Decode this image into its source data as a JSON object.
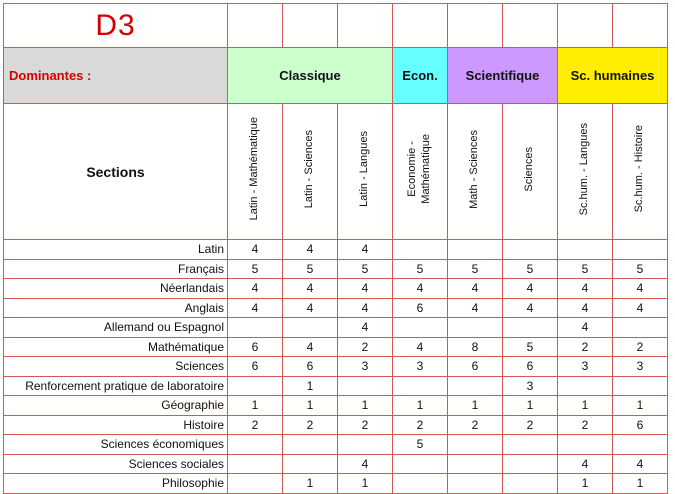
{
  "title": "D3",
  "dominantes_label": "Dominantes :",
  "sections_label": "Sections",
  "colors": {
    "grid_border": "#d25757",
    "title_red": "#d50000",
    "dominantes_bg": "#d9d9d9",
    "classique_bg": "#ccffcc",
    "econ_bg": "#66ffff",
    "scientifique_bg": "#cc99ff",
    "sc_humaines_bg": "#ffee00"
  },
  "groups": [
    {
      "label": "Classique",
      "span": 3,
      "color": "#ccffcc"
    },
    {
      "label": "Econ.",
      "span": 1,
      "color": "#66ffff"
    },
    {
      "label": "Scientifique",
      "span": 2,
      "color": "#cc99ff"
    },
    {
      "label": "Sc. humaines",
      "span": 2,
      "color": "#ffee00"
    }
  ],
  "columns": [
    "Latin - Mathématique",
    "Latin - Sciences",
    "Latin - Langues",
    "Economie -\nMathématique",
    "Math - Sciences",
    "Sciences",
    "Sc.hum. - Langues",
    "Sc.hum. - Histoire"
  ],
  "rows": [
    {
      "label": "Latin",
      "values": [
        "4",
        "4",
        "4",
        "",
        "",
        "",
        "",
        ""
      ]
    },
    {
      "label": "Français",
      "values": [
        "5",
        "5",
        "5",
        "5",
        "5",
        "5",
        "5",
        "5"
      ]
    },
    {
      "label": "Néerlandais",
      "values": [
        "4",
        "4",
        "4",
        "4",
        "4",
        "4",
        "4",
        "4"
      ]
    },
    {
      "label": "Anglais",
      "values": [
        "4",
        "4",
        "4",
        "6",
        "4",
        "4",
        "4",
        "4"
      ]
    },
    {
      "label": "Allemand ou Espagnol",
      "values": [
        "",
        "",
        "4",
        "",
        "",
        "",
        "4",
        ""
      ]
    },
    {
      "label": "Mathématique",
      "values": [
        "6",
        "4",
        "2",
        "4",
        "8",
        "5",
        "2",
        "2"
      ]
    },
    {
      "label": "Sciences",
      "values": [
        "6",
        "6",
        "3",
        "3",
        "6",
        "6",
        "3",
        "3"
      ]
    },
    {
      "label": "Renforcement pratique de  laboratoire",
      "values": [
        "",
        "1",
        "",
        "",
        "",
        "3",
        "",
        ""
      ]
    },
    {
      "label": "Géographie",
      "values": [
        "1",
        "1",
        "1",
        "1",
        "1",
        "1",
        "1",
        "1"
      ]
    },
    {
      "label": "Histoire",
      "values": [
        "2",
        "2",
        "2",
        "2",
        "2",
        "2",
        "2",
        "6"
      ]
    },
    {
      "label": "Sciences économiques",
      "values": [
        "",
        "",
        "",
        "5",
        "",
        "",
        "",
        ""
      ]
    },
    {
      "label": "Sciences sociales",
      "values": [
        "",
        "",
        "4",
        "",
        "",
        "",
        "4",
        "4"
      ]
    },
    {
      "label": "Philosophie",
      "values": [
        "",
        "1",
        "1",
        "",
        "",
        "",
        "1",
        "1"
      ]
    }
  ]
}
